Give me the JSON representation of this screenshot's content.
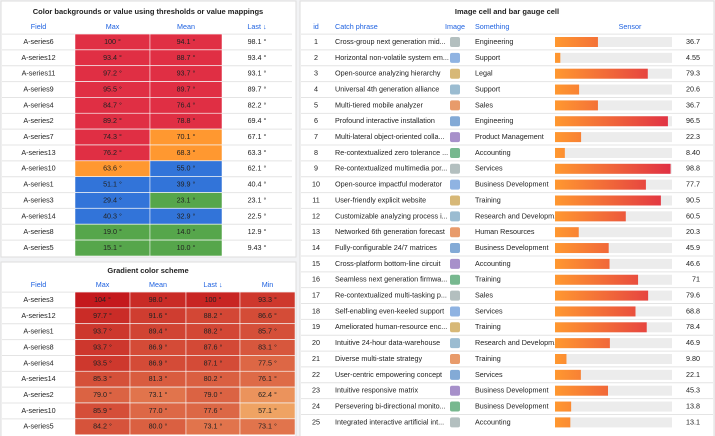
{
  "panels": [
    {
      "title": "Color backgrounds or value using thresholds or value mappings",
      "columns": [
        "Field",
        "Max",
        "Mean",
        "Last ↓"
      ],
      "thresholds": [
        {
          "color": "#56a64b"
        },
        {
          "value": 25,
          "color": "#3274d9"
        },
        {
          "value": 63,
          "color": "#ff9830"
        },
        {
          "value": 72,
          "color": "#e02f44"
        }
      ],
      "rows": [
        [
          "A-series6",
          {
            "value": 100,
            "label": "100 °"
          },
          {
            "value": 94.1,
            "label": "94.1 °"
          },
          {
            "value": 98.1,
            "label": "98.1 °"
          }
        ],
        [
          "A-series12",
          {
            "value": 93.4,
            "label": "93.4 °"
          },
          {
            "value": 88.7,
            "label": "88.7 °"
          },
          {
            "value": 93.4,
            "label": "93.4 °"
          }
        ],
        [
          "A-series11",
          {
            "value": 97.2,
            "label": "97.2 °"
          },
          {
            "value": 93.7,
            "label": "93.7 °"
          },
          {
            "value": 93.1,
            "label": "93.1 °"
          }
        ],
        [
          "A-series9",
          {
            "value": 95.5,
            "label": "95.5 °"
          },
          {
            "value": 89.7,
            "label": "89.7 °"
          },
          {
            "value": 89.7,
            "label": "89.7 °"
          }
        ],
        [
          "A-series4",
          {
            "value": 84.7,
            "label": "84.7 °"
          },
          {
            "value": 76.4,
            "label": "76.4 °"
          },
          {
            "value": 82.2,
            "label": "82.2 °"
          }
        ],
        [
          "A-series2",
          {
            "value": 89.2,
            "label": "89.2 °"
          },
          {
            "value": 78.8,
            "label": "78.8 °"
          },
          {
            "value": 69.4,
            "label": "69.4 °"
          }
        ],
        [
          "A-series7",
          {
            "value": 74.3,
            "label": "74.3 °"
          },
          {
            "value": 70.1,
            "label": "70.1 °"
          },
          {
            "value": 67.1,
            "label": "67.1 °"
          }
        ],
        [
          "A-series13",
          {
            "value": 76.2,
            "label": "76.2 °"
          },
          {
            "value": 68.3,
            "label": "68.3 °"
          },
          {
            "value": 63.3,
            "label": "63.3 °"
          }
        ],
        [
          "A-series10",
          {
            "value": 63.6,
            "label": "63.6 °"
          },
          {
            "value": 55.0,
            "label": "55.0 °"
          },
          {
            "value": 62.1,
            "label": "62.1 °"
          }
        ],
        [
          "A-series1",
          {
            "value": 51.1,
            "label": "51.1 °"
          },
          {
            "value": 39.9,
            "label": "39.9 °"
          },
          {
            "value": 40.4,
            "label": "40.4 °"
          }
        ],
        [
          "A-series3",
          {
            "value": 29.4,
            "label": "29.4 °"
          },
          {
            "value": 23.1,
            "label": "23.1 °"
          },
          {
            "value": 23.1,
            "label": "23.1 °"
          }
        ],
        [
          "A-series14",
          {
            "value": 40.3,
            "label": "40.3 °"
          },
          {
            "value": 32.9,
            "label": "32.9 °"
          },
          {
            "value": 22.5,
            "label": "22.5 °"
          }
        ],
        [
          "A-series8",
          {
            "value": 19.0,
            "label": "19.0 °"
          },
          {
            "value": 14.0,
            "label": "14.0 °"
          },
          {
            "value": 12.9,
            "label": "12.9 °"
          }
        ],
        [
          "A-series5",
          {
            "value": 15.1,
            "label": "15.1 °"
          },
          {
            "value": 10.0,
            "label": "10.0 °"
          },
          {
            "value": 9.43,
            "label": "9.43 °"
          }
        ]
      ]
    },
    {
      "title": "Gradient color scheme",
      "columns": [
        "Field",
        "Max",
        "Mean",
        "Last ↓",
        "Min"
      ],
      "gradient": {
        "range": [
          50,
          105
        ],
        "colors": [
          "#f6b86e",
          "#c3161c"
        ]
      },
      "rows": [
        [
          "A-series3",
          {
            "value": 104,
            "label": "104 °"
          },
          {
            "value": 98.0,
            "label": "98.0 °"
          },
          {
            "value": 100,
            "label": "100 °"
          },
          {
            "value": 93.3,
            "label": "93.3 °"
          }
        ],
        [
          "A-series12",
          {
            "value": 97.7,
            "label": "97.7 °"
          },
          {
            "value": 91.6,
            "label": "91.6 °"
          },
          {
            "value": 88.2,
            "label": "88.2 °"
          },
          {
            "value": 86.6,
            "label": "86.6 °"
          }
        ],
        [
          "A-series1",
          {
            "value": 93.7,
            "label": "93.7 °"
          },
          {
            "value": 89.4,
            "label": "89.4 °"
          },
          {
            "value": 88.2,
            "label": "88.2 °"
          },
          {
            "value": 85.7,
            "label": "85.7 °"
          }
        ],
        [
          "A-series8",
          {
            "value": 93.7,
            "label": "93.7 °"
          },
          {
            "value": 86.9,
            "label": "86.9 °"
          },
          {
            "value": 87.6,
            "label": "87.6 °"
          },
          {
            "value": 83.1,
            "label": "83.1 °"
          }
        ],
        [
          "A-series4",
          {
            "value": 93.5,
            "label": "93.5 °"
          },
          {
            "value": 86.9,
            "label": "86.9 °"
          },
          {
            "value": 87.1,
            "label": "87.1 °"
          },
          {
            "value": 77.5,
            "label": "77.5 °"
          }
        ],
        [
          "A-series14",
          {
            "value": 85.3,
            "label": "85.3 °"
          },
          {
            "value": 81.3,
            "label": "81.3 °"
          },
          {
            "value": 80.2,
            "label": "80.2 °"
          },
          {
            "value": 76.1,
            "label": "76.1 °"
          }
        ],
        [
          "A-series2",
          {
            "value": 79.0,
            "label": "79.0 °"
          },
          {
            "value": 73.1,
            "label": "73.1 °"
          },
          {
            "value": 79.0,
            "label": "79.0 °"
          },
          {
            "value": 62.4,
            "label": "62.4 °"
          }
        ],
        [
          "A-series10",
          {
            "value": 85.9,
            "label": "85.9 °"
          },
          {
            "value": 77.0,
            "label": "77.0 °"
          },
          {
            "value": 77.6,
            "label": "77.6 °"
          },
          {
            "value": 57.1,
            "label": "57.1 °"
          }
        ],
        [
          "A-series5",
          {
            "value": 84.2,
            "label": "84.2 °"
          },
          {
            "value": 80.0,
            "label": "80.0 °"
          },
          {
            "value": 73.1,
            "label": "73.1 °"
          },
          {
            "value": 73.1,
            "label": "73.1 °"
          }
        ]
      ]
    },
    {
      "title": "Image cell and bar gauge cell",
      "columns": [
        "id",
        "Catch phrase",
        "Image",
        "Something",
        "Sensor"
      ],
      "xlim": [
        0,
        100
      ],
      "gauge_colors": [
        "#ff9830",
        "#e02f44"
      ],
      "thresholds": [
        {
          "color": "#ff9830"
        },
        {
          "value": 40,
          "color": "#e02f44"
        }
      ],
      "rows": [
        [
          1,
          "Cross-group next generation mid...",
          "Engineering",
          36.7
        ],
        [
          2,
          "Horizontal non-volatile system em...",
          "Support",
          4.55
        ],
        [
          3,
          "Open-source analyzing hierarchy",
          "Legal",
          79.3
        ],
        [
          4,
          "Universal 4th generation alliance",
          "Support",
          20.6
        ],
        [
          5,
          "Multi-tiered mobile analyzer",
          "Sales",
          36.7
        ],
        [
          6,
          "Profound interactive installation",
          "Engineering",
          96.5
        ],
        [
          7,
          "Multi-lateral object-oriented colla...",
          "Product Management",
          22.3
        ],
        [
          8,
          "Re-contextualized zero tolerance ...",
          "Accounting",
          {
            "value": 8.4,
            "label": "8.40"
          }
        ],
        [
          9,
          "Re-contextualized multimedia por...",
          "Services",
          98.8
        ],
        [
          10,
          "Open-source impactful moderator",
          "Business Development",
          77.7
        ],
        [
          11,
          "User-friendly explicit website",
          "Training",
          90.5
        ],
        [
          12,
          "Customizable analyzing process i...",
          "Research and Developm...",
          60.5
        ],
        [
          13,
          "Networked 6th generation forecast",
          "Human Resources",
          20.3
        ],
        [
          14,
          "Fully-configurable 24/7 matrices",
          "Business Development",
          45.9
        ],
        [
          15,
          "Cross-platform bottom-line circuit",
          "Accounting",
          46.6
        ],
        [
          16,
          "Seamless next generation firmwa...",
          "Training",
          71
        ],
        [
          17,
          "Re-contextualized multi-tasking p...",
          "Sales",
          79.6
        ],
        [
          18,
          "Self-enabling even-keeled support",
          "Services",
          68.8
        ],
        [
          19,
          "Ameliorated human-resource enc...",
          "Training",
          78.4
        ],
        [
          20,
          "Intuitive 24-hour data-warehouse",
          "Research and Developm...",
          46.9
        ],
        [
          21,
          "Diverse multi-state strategy",
          "Training",
          {
            "value": 9.8,
            "label": "9.80"
          }
        ],
        [
          22,
          "User-centric empowering concept",
          "Services",
          22.1
        ],
        [
          23,
          "Intuitive responsive matrix",
          "Business Development",
          45.3
        ],
        [
          24,
          "Persevering bi-directional monito...",
          "Business Development",
          13.8
        ],
        [
          25,
          "Integrated interactive artificial int...",
          "Accounting",
          13.1
        ]
      ]
    }
  ]
}
